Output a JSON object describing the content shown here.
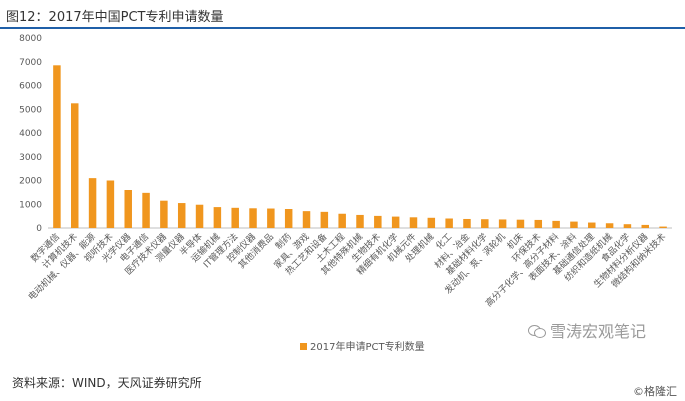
{
  "header": {
    "title": "图12：2017年中国PCT专利申请数量"
  },
  "footer": {
    "source": "资料来源：WIND，天风证券研究所",
    "copyright": "©格隆汇"
  },
  "watermark": {
    "text": "雪涛宏观笔记",
    "icon": "wechat-icon"
  },
  "colors": {
    "bar": "#f0961e",
    "axis": "#bfbfbf",
    "text": "#595959",
    "title_rule": "#1f5fa8"
  },
  "chart_data": {
    "type": "bar",
    "title": "",
    "xlabel": "",
    "ylabel": "",
    "ylim": [
      0,
      8000
    ],
    "yticks": [
      "0",
      "1000",
      "2000",
      "3000",
      "4000",
      "5000",
      "6000",
      "7000",
      "8000"
    ],
    "legend": "bottom-center",
    "grid": false,
    "categories": [
      "数字通信",
      "计算机技术",
      "电动机械、仪器、能源",
      "视听技术",
      "光学仪器",
      "电子通信",
      "医疗技术仪器",
      "测量仪器",
      "半导体",
      "运输机械",
      "IT管理方法",
      "控制仪器",
      "其他消费品",
      "制药",
      "家具、游戏",
      "热工艺和设备",
      "土木工程",
      "其他特殊机械",
      "生物技术",
      "精细有机化学",
      "机械元件",
      "处理机械",
      "化工",
      "材料、冶金",
      "基础材料化学",
      "发动机、泵、涡轮机",
      "机床",
      "环保技术",
      "高分子化学、高分子材料",
      "表面技术、涂料",
      "基础通信处理",
      "纺织和造纸机械",
      "食品化学",
      "生物材料分析仪器",
      "微结构和纳米技术"
    ],
    "series": [
      {
        "name": "2017年申请PCT专利数量",
        "values": [
          6850,
          5250,
          2100,
          2000,
          1600,
          1480,
          1150,
          1050,
          980,
          880,
          850,
          830,
          820,
          800,
          710,
          680,
          600,
          550,
          510,
          480,
          450,
          430,
          400,
          380,
          370,
          360,
          350,
          340,
          300,
          270,
          230,
          200,
          160,
          130,
          60
        ]
      }
    ]
  }
}
